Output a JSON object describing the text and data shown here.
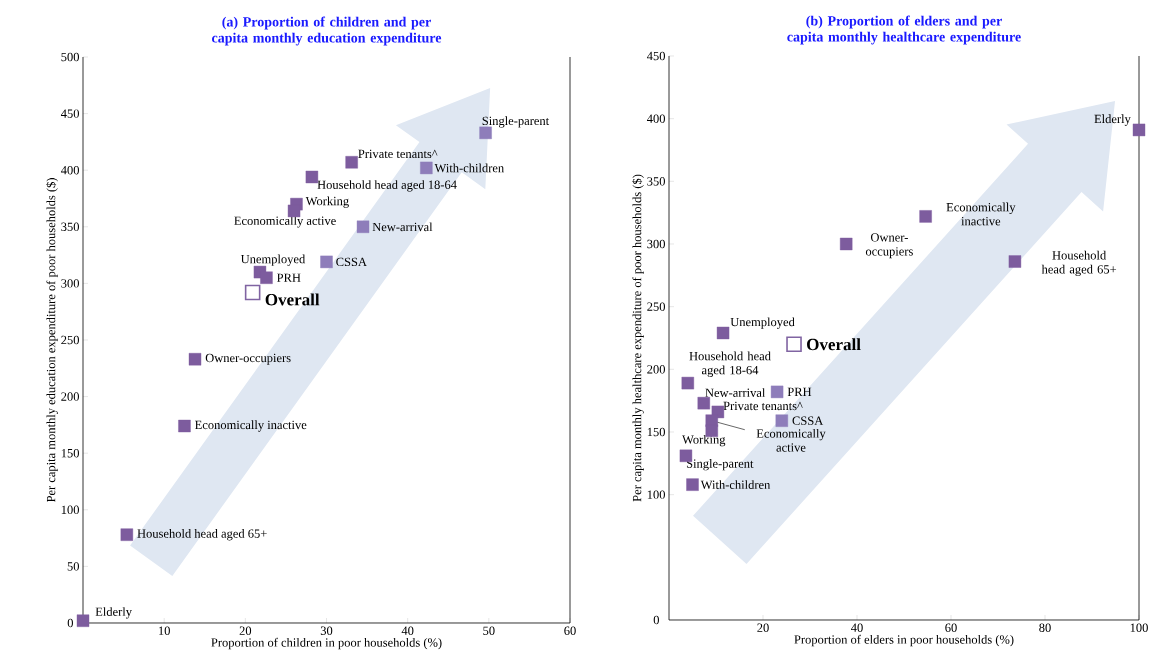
{
  "chart_data": [
    {
      "type": "scatter",
      "title": "(a) Proportion of children and per capita monthly education expenditure",
      "xlabel": "Proportion of children in poor households (%)",
      "ylabel": "Per capita monthly education expenditure of poor households ($)",
      "xlim": [
        0,
        60
      ],
      "ylim": [
        0,
        500
      ],
      "xticks": [
        10,
        20,
        30,
        40,
        50,
        60
      ],
      "yticks": [
        0,
        50,
        100,
        150,
        200,
        250,
        300,
        350,
        400,
        450,
        500
      ],
      "marker": "square",
      "series": [
        {
          "x": [
            49.6,
            33.1,
            42.3,
            28.2,
            26.3,
            26.0,
            34.5,
            30.0,
            21.8,
            22.6,
            13.8,
            12.5,
            5.4,
            0
          ],
          "values": [
            433,
            407,
            402,
            394,
            370,
            364,
            350,
            319,
            310,
            305,
            233,
            174,
            78,
            2
          ],
          "colors": [
            "#8e7dba",
            "#7d5c9e",
            "#8e7dba",
            "#7d5c9e",
            "#7d5c9e",
            "#7d5c9e",
            "#8e7dba",
            "#8e7dba",
            "#7d5c9e",
            "#7d5c9e",
            "#7d5c9e",
            "#7d5c9e",
            "#7d5c9e",
            "#7d5c9e"
          ]
        },
        {
          "name": "Overall",
          "x": [
            20.9
          ],
          "values": [
            292
          ],
          "color": "#8064a2"
        }
      ],
      "annotations": [
        {
          "text": "Single-parent",
          "x": 49.6,
          "y": 433
        },
        {
          "text": "Private tenants^",
          "x": 33.1,
          "y": 407
        },
        {
          "text": "With-children",
          "x": 42.3,
          "y": 402
        },
        {
          "text": "Household head aged 18-64",
          "x": 28.2,
          "y": 394
        },
        {
          "text": "Working",
          "x": 26.3,
          "y": 370
        },
        {
          "text": "Economically active",
          "x": 26.0,
          "y": 364
        },
        {
          "text": "New-arrival",
          "x": 34.5,
          "y": 350
        },
        {
          "text": "CSSA",
          "x": 30.0,
          "y": 319
        },
        {
          "text": "Unemployed",
          "x": 21.8,
          "y": 310
        },
        {
          "text": "PRH",
          "x": 22.6,
          "y": 305
        },
        {
          "text": "Owner-occupiers",
          "x": 13.8,
          "y": 233
        },
        {
          "text": "Economically inactive",
          "x": 12.5,
          "y": 174
        },
        {
          "text": "Household head aged 65+",
          "x": 5.4,
          "y": 78
        },
        {
          "text": "Elderly",
          "x": 0,
          "y": 2
        }
      ]
    },
    {
      "type": "scatter",
      "title": "(b) Proportion of elders and per capita monthly healthcare expenditure",
      "xlabel": "Proportion of elders in poor households (%)",
      "ylabel": "Per capita monthly healthcare expenditure of poor households ($)",
      "xlim": [
        0,
        100
      ],
      "ylim": [
        0,
        450
      ],
      "xticks": [
        20,
        40,
        60,
        80,
        100
      ],
      "yticks": [
        0,
        100,
        150,
        200,
        250,
        300,
        350,
        400,
        450
      ],
      "marker": "square",
      "series": [
        {
          "x": [
            100,
            54.6,
            37.7,
            73.6,
            11.5,
            4.0,
            23.0,
            7.4,
            10.4,
            24.0,
            9.1,
            9.1,
            3.6,
            5.0
          ],
          "values": [
            391,
            322,
            300,
            286,
            229,
            189,
            182,
            173,
            166,
            159,
            159,
            151,
            131,
            108
          ],
          "colors": [
            "#7d5c9e",
            "#7d5c9e",
            "#7d5c9e",
            "#7d5c9e",
            "#7d5c9e",
            "#7d5c9e",
            "#8e7dba",
            "#7d5c9e",
            "#7d5c9e",
            "#8e7dba",
            "#7d5c9e",
            "#7d5c9e",
            "#7d5c9e",
            "#7d5c9e"
          ]
        },
        {
          "name": "Overall",
          "x": [
            26.6
          ],
          "values": [
            220
          ],
          "color": "#8064a2"
        }
      ],
      "annotations": [
        {
          "text": "Elderly",
          "x": 100,
          "y": 391
        },
        {
          "text": "Economically inactive",
          "x": 54.6,
          "y": 322
        },
        {
          "text": "Owner-occupiers",
          "x": 37.7,
          "y": 300
        },
        {
          "text": "Household head aged 65+",
          "x": 73.6,
          "y": 286
        },
        {
          "text": "Unemployed",
          "x": 11.5,
          "y": 229
        },
        {
          "text": "Household head aged 18-64",
          "x": 4.0,
          "y": 189
        },
        {
          "text": "PRH",
          "x": 23.0,
          "y": 182
        },
        {
          "text": "New-arrival",
          "x": 7.4,
          "y": 173
        },
        {
          "text": "Private tenants^",
          "x": 10.4,
          "y": 166
        },
        {
          "text": "CSSA",
          "x": 24.0,
          "y": 159
        },
        {
          "text": "Economically active",
          "x": 9.1,
          "y": 159
        },
        {
          "text": "Working",
          "x": 9.1,
          "y": 151
        },
        {
          "text": "Single-parent",
          "x": 3.6,
          "y": 131
        },
        {
          "text": "With-children",
          "x": 5.0,
          "y": 108
        }
      ]
    }
  ]
}
